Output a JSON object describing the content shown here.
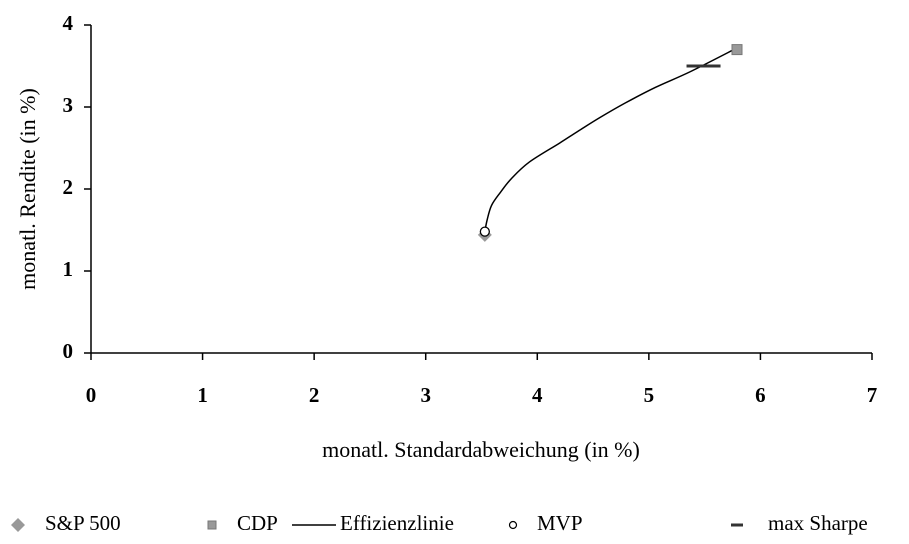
{
  "chart_data": {
    "type": "scatter",
    "xlabel": "monatl. Standardabweichung (in %)",
    "ylabel": "monatl. Rendite (in %)",
    "xlim": [
      0,
      7
    ],
    "ylim": [
      0,
      4
    ],
    "xticks": [
      0,
      1,
      2,
      3,
      4,
      5,
      6,
      7
    ],
    "yticks": [
      0,
      1,
      2,
      3,
      4
    ],
    "legend": "bottom",
    "series": [
      {
        "name": "S&P 500",
        "color": "#999999",
        "marker": "diamond",
        "x": [
          3.53
        ],
        "values": [
          1.44
        ]
      },
      {
        "name": "CDP",
        "color": "#999999",
        "marker": "square",
        "x": [
          5.79
        ],
        "values": [
          3.7
        ]
      },
      {
        "name": "Effizienzlinie",
        "color": "#000000",
        "marker": "line",
        "x": [
          3.53,
          3.55,
          3.59,
          3.67,
          3.77,
          3.93,
          4.2,
          4.36,
          4.56,
          4.79,
          5.06,
          5.37,
          5.79
        ],
        "values": [
          1.48,
          1.62,
          1.8,
          1.96,
          2.13,
          2.33,
          2.56,
          2.7,
          2.87,
          3.05,
          3.24,
          3.43,
          3.72
        ]
      },
      {
        "name": "MVP",
        "color": "#ffffff",
        "marker": "circle",
        "x": [
          3.53
        ],
        "values": [
          1.48
        ]
      },
      {
        "name": "max Sharpe",
        "color": "#333333",
        "marker": "dash",
        "x": [
          5.49
        ],
        "values": [
          3.5
        ]
      }
    ]
  }
}
